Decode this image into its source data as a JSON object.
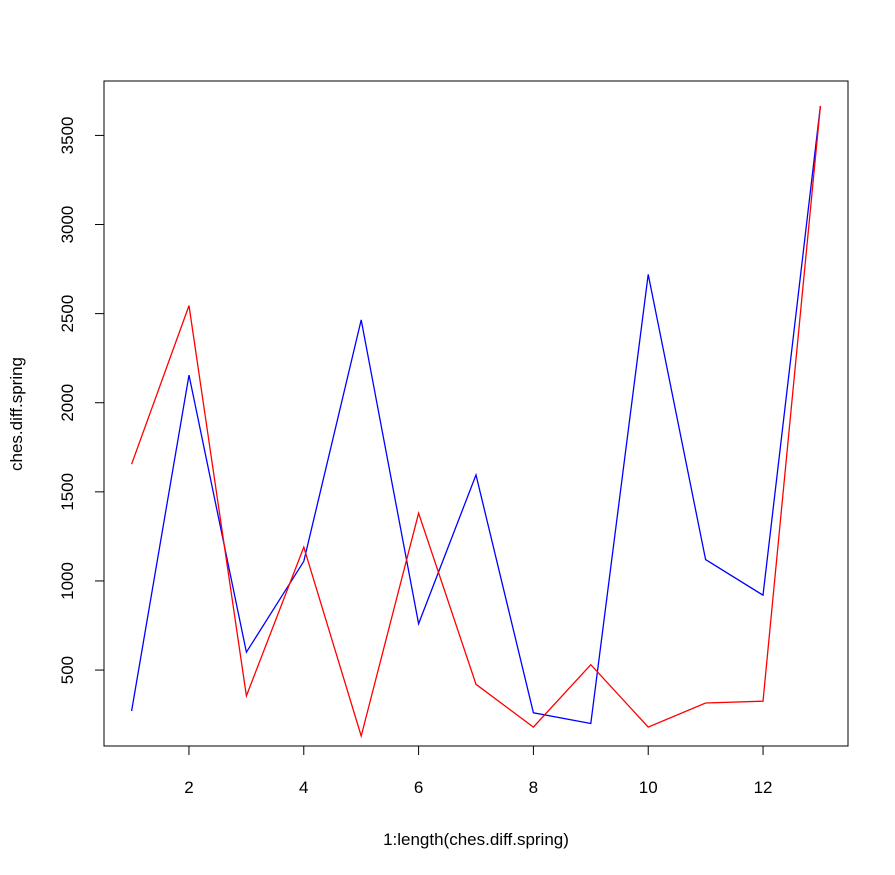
{
  "chart_data": {
    "type": "line",
    "title": "",
    "xlabel": "1:length(ches.diff.spring)",
    "ylabel": "ches.diff.spring",
    "x": [
      1,
      2,
      3,
      4,
      5,
      6,
      7,
      8,
      9,
      10,
      11,
      12,
      13
    ],
    "xlim": [
      0.52,
      13.48
    ],
    "ylim": [
      130,
      3665
    ],
    "x_ticks": [
      2,
      4,
      6,
      8,
      10,
      12
    ],
    "y_ticks": [
      500,
      1000,
      1500,
      2000,
      2500,
      3000,
      3500
    ],
    "x_tick_labels": [
      "2",
      "4",
      "6",
      "8",
      "10",
      "12"
    ],
    "y_tick_labels": [
      "500",
      "1000",
      "1500",
      "2000",
      "2500",
      "3000",
      "3500"
    ],
    "grid": false,
    "series": [
      {
        "color": "#0000ff",
        "values": [
          270,
          2155,
          600,
          1110,
          2465,
          760,
          1595,
          260,
          200,
          2720,
          1120,
          920,
          3665
        ]
      },
      {
        "color": "#ff0000",
        "values": [
          1655,
          2545,
          355,
          1190,
          130,
          1380,
          420,
          180,
          530,
          180,
          315,
          325,
          3665
        ]
      }
    ]
  }
}
